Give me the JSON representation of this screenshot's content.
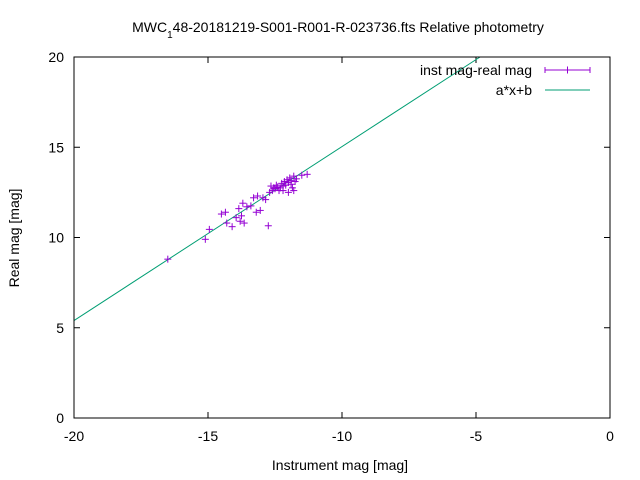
{
  "chart_data": {
    "type": "scatter",
    "title_main": "MWC",
    "title_sub": "1",
    "title_rest": "48-20181219-S001-R001-R-023736.fts Relative photometry",
    "xlabel": "Instrument mag [mag]",
    "ylabel": "Real mag [mag]",
    "xlim": [
      -20,
      0
    ],
    "ylim": [
      0,
      20
    ],
    "xticks": [
      -20,
      -15,
      -10,
      -5,
      0
    ],
    "yticks": [
      0,
      5,
      10,
      15,
      20
    ],
    "xtick_labels": [
      "-20",
      "-15",
      "-10",
      "-5",
      "0"
    ],
    "ytick_labels": [
      "0",
      "5",
      "10",
      "15",
      "20"
    ],
    "grid": false,
    "legend_position": "top-right",
    "series": [
      {
        "name": "inst mag-real mag",
        "type": "points",
        "marker": "+",
        "color": "#9400d3",
        "points": [
          [
            -16.5,
            8.8
          ],
          [
            -15.1,
            9.9
          ],
          [
            -14.95,
            10.45
          ],
          [
            -14.5,
            11.3
          ],
          [
            -14.35,
            11.4
          ],
          [
            -14.3,
            10.8
          ],
          [
            -14.1,
            10.6
          ],
          [
            -13.95,
            11.1
          ],
          [
            -13.85,
            11.6
          ],
          [
            -13.8,
            10.9
          ],
          [
            -13.75,
            11.2
          ],
          [
            -13.7,
            11.9
          ],
          [
            -13.65,
            10.8
          ],
          [
            -13.55,
            11.7
          ],
          [
            -13.4,
            11.75
          ],
          [
            -13.3,
            12.2
          ],
          [
            -13.2,
            11.4
          ],
          [
            -13.15,
            12.3
          ],
          [
            -13.05,
            11.5
          ],
          [
            -12.95,
            12.2
          ],
          [
            -12.85,
            12.1
          ],
          [
            -12.75,
            10.65
          ],
          [
            -12.7,
            12.5
          ],
          [
            -12.65,
            12.85
          ],
          [
            -12.6,
            12.6
          ],
          [
            -12.55,
            12.75
          ],
          [
            -12.5,
            12.7
          ],
          [
            -12.45,
            12.9
          ],
          [
            -12.4,
            12.8
          ],
          [
            -12.35,
            12.6
          ],
          [
            -12.3,
            12.75
          ],
          [
            -12.25,
            13.0
          ],
          [
            -12.2,
            12.85
          ],
          [
            -12.2,
            12.6
          ],
          [
            -12.15,
            13.1
          ],
          [
            -12.1,
            12.9
          ],
          [
            -12.05,
            13.2
          ],
          [
            -12.0,
            13.05
          ],
          [
            -12.0,
            12.5
          ],
          [
            -11.95,
            13.3
          ],
          [
            -11.9,
            12.95
          ],
          [
            -11.9,
            13.15
          ],
          [
            -11.85,
            12.75
          ],
          [
            -11.8,
            13.4
          ],
          [
            -11.8,
            12.6
          ],
          [
            -11.75,
            13.1
          ],
          [
            -11.7,
            13.25
          ],
          [
            -11.5,
            13.45
          ],
          [
            -11.3,
            13.5
          ]
        ]
      },
      {
        "name": "a*x+b",
        "type": "line",
        "color": "#009e73",
        "x": [
          -20.0,
          -4.85
        ],
        "y": [
          5.4,
          20.0
        ]
      }
    ]
  }
}
